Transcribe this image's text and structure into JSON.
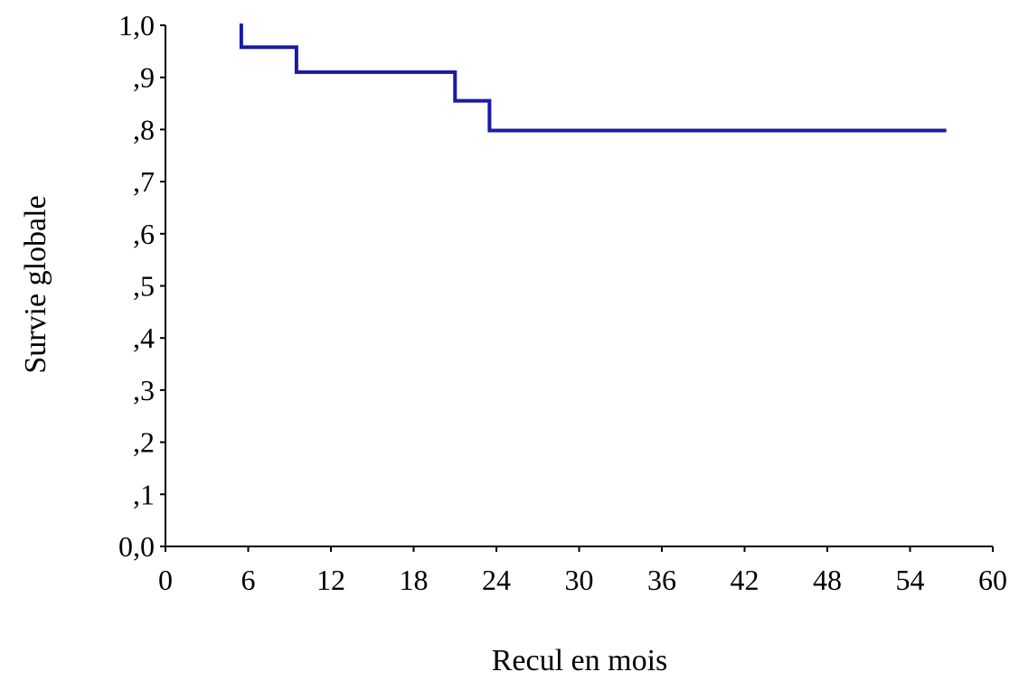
{
  "chart_data": {
    "type": "line",
    "title": "",
    "xlabel": "Recul en mois",
    "ylabel": "Survie globale",
    "xlim": [
      0,
      60
    ],
    "ylim": [
      0,
      1
    ],
    "grid": false,
    "x_ticks": [
      0,
      6,
      12,
      18,
      24,
      30,
      36,
      42,
      48,
      54,
      60
    ],
    "x_tick_labels": [
      "0",
      "6",
      "12",
      "18",
      "24",
      "30",
      "36",
      "42",
      "48",
      "54",
      "60"
    ],
    "y_ticks": [
      0,
      0.1,
      0.2,
      0.3,
      0.4,
      0.5,
      0.6,
      0.7,
      0.8,
      0.9,
      1.0
    ],
    "y_tick_labels": [
      "0,0",
      ",1",
      ",2",
      ",3",
      ",4",
      ",5",
      ",6",
      ",7",
      ",8",
      ",9",
      "1,0"
    ],
    "series": [
      {
        "step": "post",
        "color": "#1a1aa8",
        "x": [
          5.5,
          5.5,
          9.5,
          21.0,
          23.5,
          56.5
        ],
        "y": [
          1.0,
          0.958,
          0.91,
          0.855,
          0.798,
          0.798
        ]
      }
    ]
  }
}
